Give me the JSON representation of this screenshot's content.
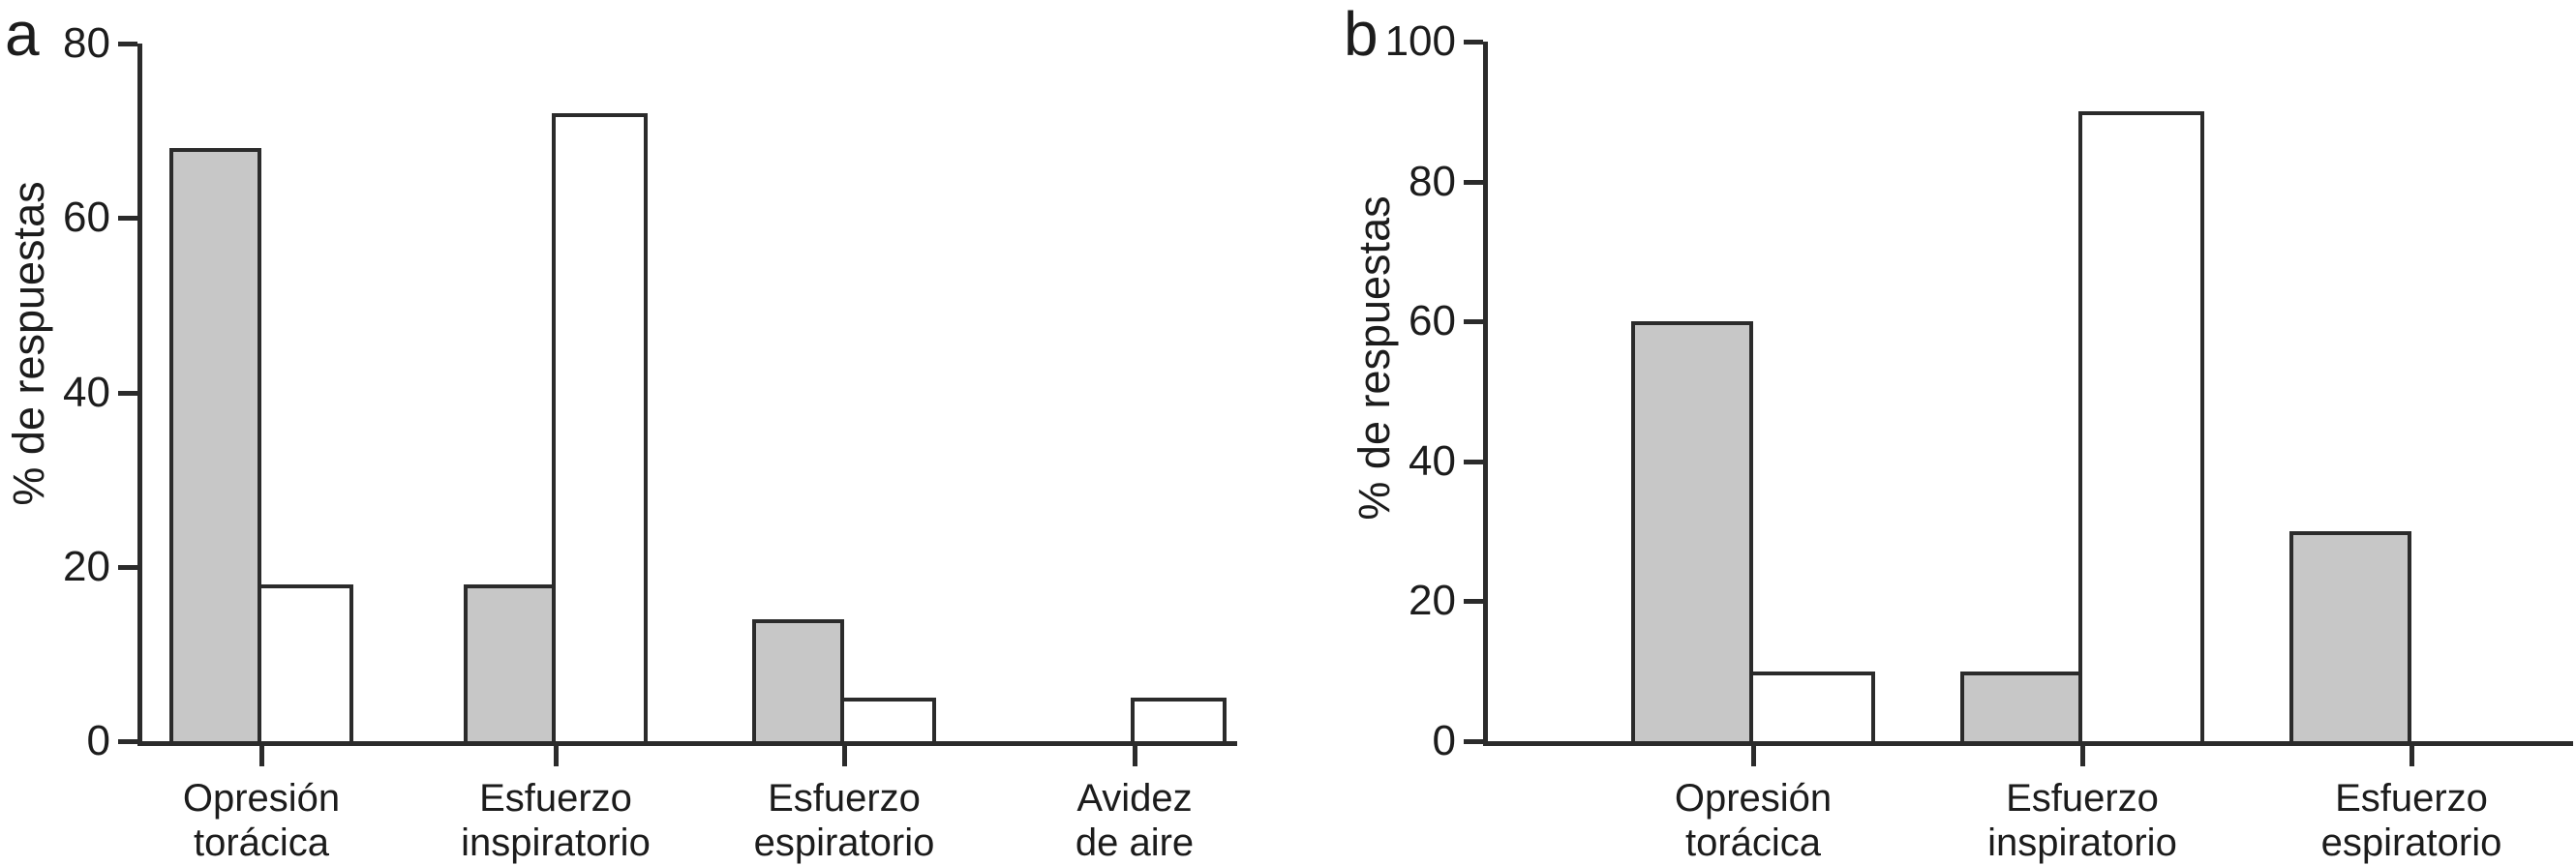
{
  "figure": {
    "background": "#ffffff",
    "axis_color": "#2b2b2b",
    "bar_outline_color": "#2b2b2b",
    "text_color": "#1c1c1c",
    "gray_fill": "#c7c7c7",
    "white_fill": "#ffffff"
  },
  "chart_data": [
    {
      "type": "bar",
      "panel_label": "a",
      "title": "",
      "xlabel": "",
      "ylabel": "% de respuestas",
      "ylim": [
        0,
        80
      ],
      "yticks": [
        0,
        20,
        40,
        60,
        80
      ],
      "grid": false,
      "legend": "none",
      "categories": [
        "Opresión torácica",
        "Esfuerzo inspiratorio",
        "Esfuerzo espiratorio",
        "Avidez de aire"
      ],
      "category_lines": [
        [
          "Opresión",
          "torácica"
        ],
        [
          "Esfuerzo",
          "inspiratorio"
        ],
        [
          "Esfuerzo",
          "espiratorio"
        ],
        [
          "Avidez",
          "de aire"
        ]
      ],
      "series": [
        {
          "name": "gray",
          "fill": "#c7c7c7",
          "values": [
            68,
            18,
            14,
            0
          ]
        },
        {
          "name": "white",
          "fill": "#ffffff",
          "values": [
            18,
            72,
            5,
            5
          ]
        }
      ]
    },
    {
      "type": "bar",
      "panel_label": "b",
      "title": "",
      "xlabel": "",
      "ylabel": "% de respuestas",
      "ylim": [
        0,
        100
      ],
      "yticks": [
        0,
        20,
        40,
        60,
        80,
        100
      ],
      "grid": false,
      "legend": "none",
      "categories": [
        "Opresión torácica",
        "Esfuerzo inspiratorio",
        "Esfuerzo espiratorio"
      ],
      "category_lines": [
        [
          "Opresión",
          "torácica"
        ],
        [
          "Esfuerzo",
          "inspiratorio"
        ],
        [
          "Esfuerzo",
          "espiratorio"
        ]
      ],
      "series": [
        {
          "name": "gray",
          "fill": "#c7c7c7",
          "values": [
            60,
            10,
            30
          ]
        },
        {
          "name": "white",
          "fill": "#ffffff",
          "values": [
            10,
            90,
            0
          ]
        }
      ]
    }
  ]
}
